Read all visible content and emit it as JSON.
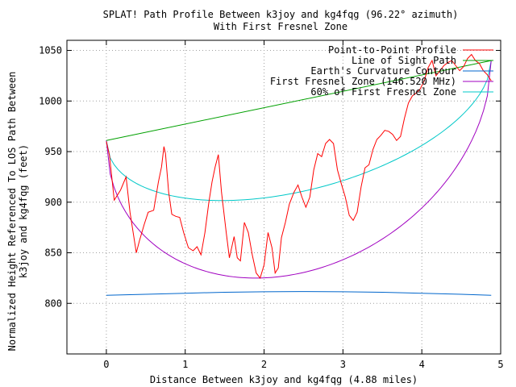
{
  "chart_data": {
    "type": "line",
    "title": "SPLAT! Path Profile Between k3joy and kg4fqg (96.22° azimuth)",
    "subtitle": "With First Fresnel Zone",
    "xlabel": "Distance Between k3joy and kg4fqg (4.88 miles)",
    "ylabel": "Normalized Height Referenced To LOS Path Between",
    "ylabel2": "k3joy and kg4fqg (feet)",
    "xlim": [
      -0.5,
      5
    ],
    "ylim": [
      750,
      1060
    ],
    "xticks": [
      0,
      1,
      2,
      3,
      4,
      5
    ],
    "yticks": [
      800,
      850,
      900,
      950,
      1000,
      1050
    ],
    "grid": true,
    "legend_position": "top-right",
    "series": [
      {
        "name": "Point-to-Point Profile",
        "color": "#ff0000",
        "x": [
          0.0,
          0.04,
          0.1,
          0.18,
          0.25,
          0.3,
          0.38,
          0.42,
          0.48,
          0.53,
          0.6,
          0.66,
          0.7,
          0.73,
          0.75,
          0.79,
          0.83,
          0.88,
          0.93,
          0.98,
          1.04,
          1.1,
          1.15,
          1.2,
          1.25,
          1.3,
          1.34,
          1.38,
          1.42,
          1.46,
          1.52,
          1.56,
          1.62,
          1.66,
          1.7,
          1.75,
          1.8,
          1.85,
          1.9,
          1.95,
          2.0,
          2.05,
          2.1,
          2.14,
          2.18,
          2.22,
          2.27,
          2.32,
          2.38,
          2.43,
          2.48,
          2.53,
          2.58,
          2.63,
          2.68,
          2.73,
          2.78,
          2.83,
          2.88,
          2.93,
          2.98,
          3.03,
          3.08,
          3.13,
          3.18,
          3.23,
          3.28,
          3.33,
          3.38,
          3.43,
          3.48,
          3.53,
          3.58,
          3.63,
          3.68,
          3.73,
          3.78,
          3.83,
          3.88,
          3.93,
          3.98,
          4.03,
          4.08,
          4.13,
          4.18,
          4.23,
          4.28,
          4.33,
          4.38,
          4.43,
          4.48,
          4.53,
          4.58,
          4.63,
          4.68,
          4.73,
          4.78,
          4.83,
          4.88
        ],
        "y": [
          960,
          946,
          902,
          912,
          925,
          890,
          850,
          862,
          878,
          890,
          892,
          920,
          935,
          955,
          948,
          910,
          888,
          886,
          885,
          870,
          855,
          852,
          856,
          848,
          870,
          900,
          920,
          935,
          947,
          910,
          870,
          845,
          866,
          845,
          842,
          880,
          870,
          848,
          830,
          825,
          838,
          870,
          855,
          830,
          835,
          865,
          880,
          898,
          910,
          917,
          905,
          895,
          905,
          932,
          948,
          945,
          958,
          962,
          958,
          932,
          918,
          905,
          887,
          882,
          890,
          915,
          934,
          937,
          952,
          962,
          966,
          971,
          970,
          967,
          961,
          965,
          983,
          998,
          1005,
          1008,
          1012,
          1020,
          1033,
          1040,
          1025,
          1030,
          1035,
          1038,
          1040,
          1035,
          1030,
          1034,
          1042,
          1046,
          1040,
          1037,
          1030,
          1026,
          1020
        ]
      },
      {
        "name": "Line of Sight Path",
        "color": "#00a000",
        "x": [
          0.0,
          4.88
        ],
        "y": [
          961,
          1040
        ]
      },
      {
        "name": "Earth's Curvature Contour",
        "color": "#0066cc",
        "x": [
          0.0,
          0.5,
          1.0,
          1.5,
          2.0,
          2.44,
          3.0,
          3.5,
          4.0,
          4.5,
          4.88
        ],
        "y": [
          808,
          809,
          810,
          811,
          811.5,
          811.7,
          811.5,
          811,
          810,
          809,
          808
        ]
      },
      {
        "name": "First Fresnel Zone (146.520 MHz)",
        "color": "#a000c0"
      },
      {
        "name": "60% of First Fresnel Zone",
        "color": "#00c8c8"
      }
    ]
  }
}
